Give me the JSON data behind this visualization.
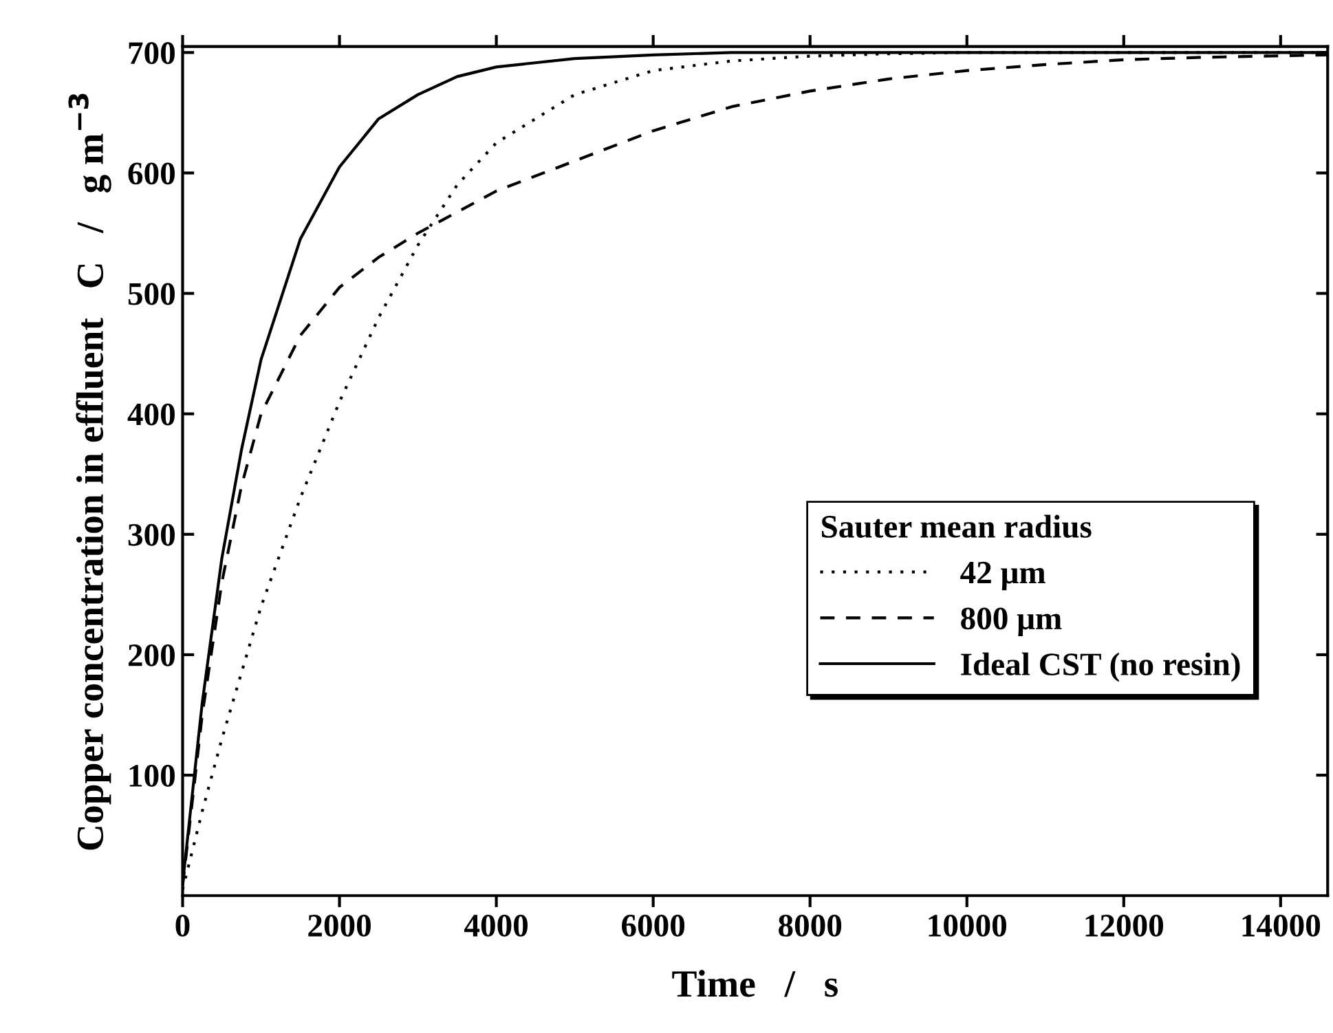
{
  "chart_data": {
    "type": "line",
    "xlabel": "Time   /   s",
    "ylabel": "Copper concentration in effluent   C   /   g m$^{−3}$",
    "legend_title": "Sauter mean radius",
    "legend": "right",
    "grid": false,
    "xlim": [
      0,
      14600
    ],
    "xticks": [
      0,
      2000,
      4000,
      6000,
      8000,
      10000,
      12000,
      14000
    ],
    "ylim": [
      0,
      705
    ],
    "yticks": [
      100,
      200,
      300,
      400,
      500,
      600,
      700
    ],
    "series": [
      {
        "name": "42 μm",
        "color": "#000000",
        "line_style": "dotted",
        "x": [
          0,
          250,
          500,
          1000,
          1500,
          2000,
          2500,
          3000,
          3500,
          4000,
          5000,
          6000,
          7000,
          8000,
          9000,
          10000,
          14600
        ],
        "values": [
          5,
          70,
          130,
          240,
          330,
          410,
          480,
          540,
          590,
          625,
          665,
          685,
          693,
          697,
          699,
          700,
          700
        ]
      },
      {
        "name": "800 μm",
        "color": "#000000",
        "line_style": "dashed",
        "x": [
          0,
          250,
          500,
          750,
          1000,
          1500,
          2000,
          2500,
          3000,
          4000,
          5000,
          6000,
          7000,
          8000,
          9000,
          10000,
          11000,
          12000,
          13000,
          14600
        ],
        "values": [
          8,
          150,
          260,
          340,
          400,
          465,
          505,
          530,
          550,
          585,
          610,
          635,
          655,
          668,
          678,
          685,
          690,
          694,
          696,
          698
        ]
      },
      {
        "name": "Ideal CST (no resin)",
        "color": "#000000",
        "line_style": "solid",
        "x": [
          0,
          250,
          500,
          750,
          1000,
          1500,
          2000,
          2500,
          3000,
          3500,
          4000,
          5000,
          6000,
          7000,
          14600
        ],
        "values": [
          10,
          160,
          280,
          370,
          445,
          545,
          605,
          645,
          665,
          680,
          688,
          695,
          698,
          700,
          700
        ]
      }
    ]
  }
}
